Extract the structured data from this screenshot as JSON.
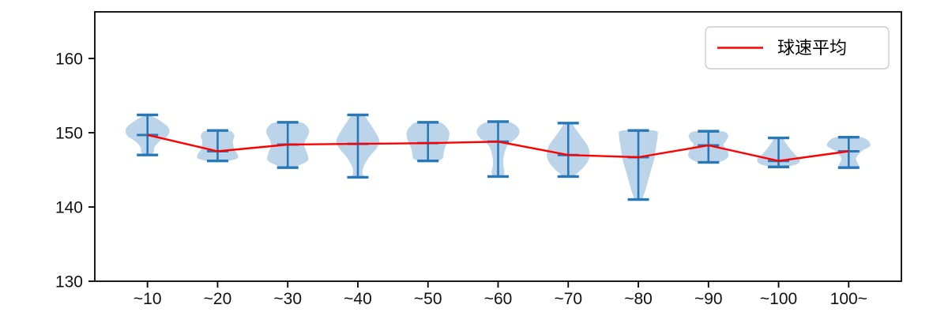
{
  "figure": {
    "background": "#ffffff"
  },
  "legend": {
    "label": "球速平均"
  },
  "colors": {
    "violin_fill": "#bcd4ea",
    "violin_stroke": "#2878b8",
    "mean_line": "#ff0000",
    "axis": "#000000",
    "tick_text": "#111111",
    "legend_border": "#cccccc",
    "legend_bg": "#ffffff"
  },
  "chart_data": {
    "type": "violin",
    "title": "",
    "xlabel": "",
    "ylabel": "",
    "categories": [
      "~10",
      "~20",
      "~30",
      "~40",
      "~50",
      "~60",
      "~70",
      "~80",
      "~90",
      "~100",
      "100~"
    ],
    "yticks": [
      130,
      140,
      150,
      160
    ],
    "ylim": [
      130,
      166.3
    ],
    "grid": false,
    "legend_position": "upper right",
    "series": [
      {
        "name": "球速平均",
        "type": "line",
        "color": "#ff0000",
        "values": [
          149.7,
          147.5,
          148.4,
          148.5,
          148.6,
          148.8,
          147.0,
          146.7,
          148.3,
          146.2,
          147.5
        ]
      }
    ],
    "violins": [
      {
        "category": "~10",
        "min": 147.0,
        "max": 152.4,
        "mean": 149.7,
        "profile": [
          [
            152.4,
            0.08
          ],
          [
            151.6,
            0.6
          ],
          [
            150.6,
            1.0
          ],
          [
            149.6,
            0.95
          ],
          [
            148.8,
            0.55
          ],
          [
            148.0,
            0.32
          ],
          [
            147.4,
            0.3
          ],
          [
            147.0,
            0.12
          ]
        ]
      },
      {
        "category": "~20",
        "min": 146.2,
        "max": 150.3,
        "mean": 147.5,
        "profile": [
          [
            150.3,
            0.5
          ],
          [
            149.7,
            0.78
          ],
          [
            148.8,
            0.72
          ],
          [
            147.8,
            0.78
          ],
          [
            147.0,
            0.95
          ],
          [
            146.5,
            0.9
          ],
          [
            146.2,
            0.4
          ]
        ]
      },
      {
        "category": "~30",
        "min": 145.3,
        "max": 151.4,
        "mean": 148.4,
        "profile": [
          [
            151.4,
            0.55
          ],
          [
            150.8,
            0.92
          ],
          [
            150.0,
            1.0
          ],
          [
            148.9,
            0.82
          ],
          [
            148.2,
            0.78
          ],
          [
            147.3,
            0.9
          ],
          [
            146.3,
            0.95
          ],
          [
            145.7,
            0.6
          ],
          [
            145.3,
            0.25
          ]
        ]
      },
      {
        "category": "~40",
        "min": 144.0,
        "max": 152.4,
        "mean": 148.5,
        "profile": [
          [
            152.4,
            0.25
          ],
          [
            151.5,
            0.5
          ],
          [
            150.3,
            0.78
          ],
          [
            149.0,
            1.0
          ],
          [
            148.0,
            0.9
          ],
          [
            146.8,
            0.55
          ],
          [
            145.5,
            0.28
          ],
          [
            144.5,
            0.22
          ],
          [
            144.0,
            0.3
          ]
        ]
      },
      {
        "category": "~50",
        "min": 146.2,
        "max": 151.4,
        "mean": 148.6,
        "profile": [
          [
            151.4,
            0.5
          ],
          [
            150.8,
            0.85
          ],
          [
            150.0,
            1.0
          ],
          [
            149.0,
            0.95
          ],
          [
            148.0,
            0.8
          ],
          [
            147.0,
            0.72
          ],
          [
            146.5,
            0.68
          ],
          [
            146.2,
            0.35
          ]
        ]
      },
      {
        "category": "~60",
        "min": 144.1,
        "max": 151.5,
        "mean": 148.8,
        "profile": [
          [
            151.5,
            0.45
          ],
          [
            150.8,
            0.9
          ],
          [
            150.0,
            1.0
          ],
          [
            149.2,
            0.82
          ],
          [
            148.3,
            0.45
          ],
          [
            147.0,
            0.28
          ],
          [
            145.8,
            0.24
          ],
          [
            144.6,
            0.3
          ],
          [
            144.1,
            0.18
          ]
        ]
      },
      {
        "category": "~70",
        "min": 144.1,
        "max": 151.3,
        "mean": 147.0,
        "profile": [
          [
            151.3,
            0.15
          ],
          [
            150.5,
            0.35
          ],
          [
            149.5,
            0.6
          ],
          [
            148.3,
            0.9
          ],
          [
            147.3,
            1.0
          ],
          [
            146.3,
            0.95
          ],
          [
            145.3,
            0.7
          ],
          [
            144.5,
            0.4
          ],
          [
            144.1,
            0.22
          ]
        ]
      },
      {
        "category": "~80",
        "min": 141.0,
        "max": 150.3,
        "mean": 146.7,
        "profile": [
          [
            150.3,
            0.75
          ],
          [
            149.5,
            0.9
          ],
          [
            148.5,
            0.85
          ],
          [
            147.5,
            0.8
          ],
          [
            146.5,
            0.75
          ],
          [
            145.0,
            0.6
          ],
          [
            143.5,
            0.45
          ],
          [
            142.0,
            0.3
          ],
          [
            141.0,
            0.15
          ]
        ]
      },
      {
        "category": "~90",
        "min": 146.0,
        "max": 150.2,
        "mean": 148.3,
        "profile": [
          [
            150.2,
            0.6
          ],
          [
            149.7,
            0.92
          ],
          [
            149.0,
            0.85
          ],
          [
            148.4,
            0.7
          ],
          [
            147.8,
            0.85
          ],
          [
            147.0,
            0.95
          ],
          [
            146.4,
            0.8
          ],
          [
            146.0,
            0.4
          ]
        ]
      },
      {
        "category": "~100",
        "min": 145.4,
        "max": 149.3,
        "mean": 146.2,
        "profile": [
          [
            149.3,
            0.18
          ],
          [
            148.7,
            0.32
          ],
          [
            147.8,
            0.55
          ],
          [
            147.0,
            0.8
          ],
          [
            146.4,
            1.0
          ],
          [
            145.8,
            0.88
          ],
          [
            145.4,
            0.3
          ]
        ]
      },
      {
        "category": "100~",
        "min": 145.3,
        "max": 149.4,
        "mean": 147.5,
        "profile": [
          [
            149.4,
            0.55
          ],
          [
            148.9,
            0.92
          ],
          [
            148.2,
            1.0
          ],
          [
            147.5,
            0.6
          ],
          [
            146.6,
            0.35
          ],
          [
            145.9,
            0.42
          ],
          [
            145.4,
            0.48
          ],
          [
            145.3,
            0.2
          ]
        ]
      }
    ]
  }
}
